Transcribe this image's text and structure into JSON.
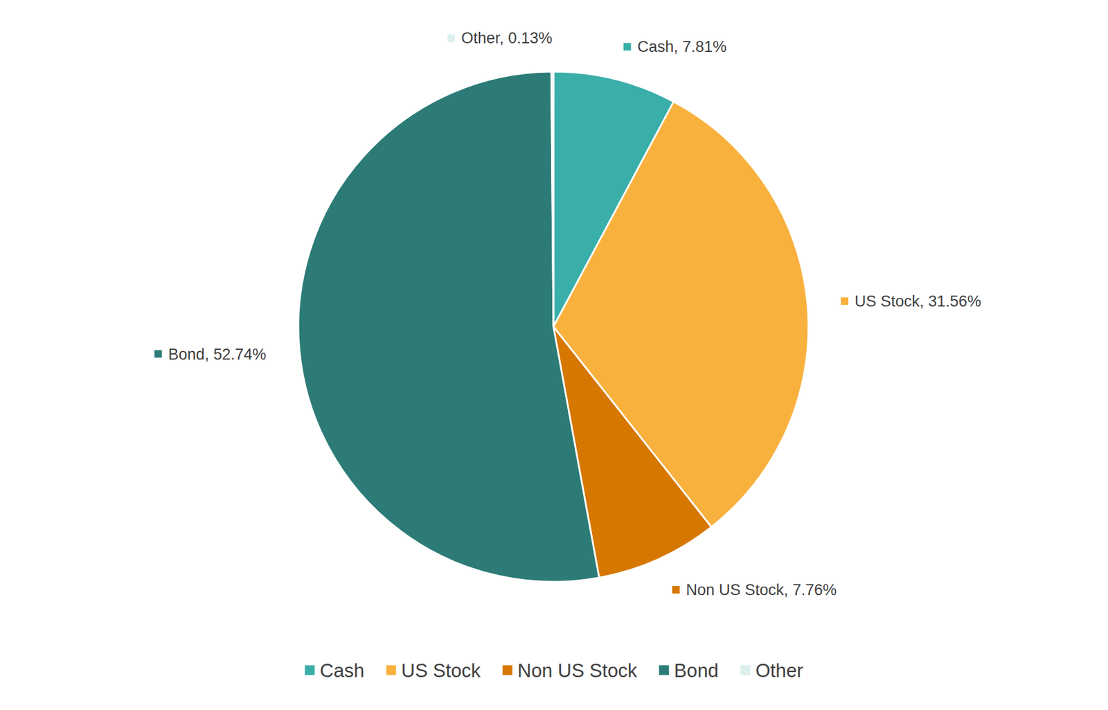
{
  "chart_data": {
    "type": "pie",
    "categories": [
      "Cash",
      "US Stock",
      "Non US Stock",
      "Bond",
      "Other"
    ],
    "values": [
      7.81,
      31.56,
      7.76,
      52.74,
      0.13
    ],
    "value_labels": [
      "Cash, 7.81%",
      "US Stock, 31.56%",
      "Non US Stock, 7.76%",
      "Bond, 52.74%",
      "Other, 0.13%"
    ],
    "colors": [
      "#3aaea9",
      "#f9b13e",
      "#d67700",
      "#2c7b76",
      "#ddefee"
    ],
    "data_labels": true,
    "legend": "bottom"
  }
}
